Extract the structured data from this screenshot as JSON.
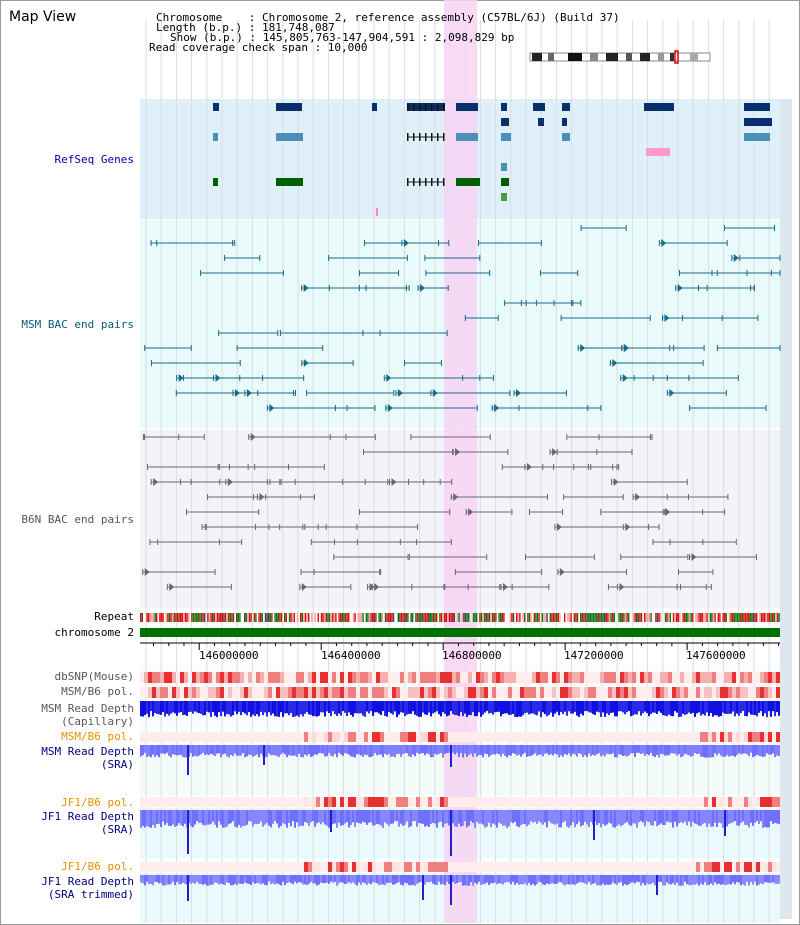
{
  "title": "Map View",
  "header": {
    "chromosome_line": "Chromosome    : Chromosome 2, reference assembly (C57BL/6J) (Build 37)",
    "length_line": "Length (b.p.) : 181,748,087",
    "show_line": "Show (b.p.) : 145,805,763-147,904,591 : 2,098,829 bp",
    "coverage_line": "Read coverage check span : 10,000"
  },
  "view": {
    "start": 145805763,
    "end": 147904591
  },
  "tracks": {
    "refseq": "RefSeq Genes",
    "msm_bac": "MSM BAC end pairs",
    "b6n_bac": "B6N BAC end pairs",
    "repeat": "Repeat",
    "chromosome": "chromosome 2",
    "dbsnp": "dbSNP(Mouse)",
    "msm_b6_pol": "MSM/B6 pol.",
    "msm_depth_cap_1": "MSM Read Depth",
    "msm_depth_cap_2": "(Capillary)",
    "msm_b6_pol_2": "MSM/B6 pol.",
    "msm_depth_sra_1": "MSM Read Depth",
    "msm_depth_sra_2": "(SRA)",
    "jf1_b6_pol": "JF1/B6 pol.",
    "jf1_depth_sra_1": "JF1 Read Depth",
    "jf1_depth_sra_2": "(SRA)",
    "jf1_b6_pol_2": "JF1/B6 pol.",
    "jf1_depth_trim_1": "JF1 Read Depth",
    "jf1_depth_trim_2": "(SRA trimmed)"
  },
  "axis": {
    "ticks": [
      "146000000",
      "146400000",
      "146800000",
      "147200000",
      "147600000"
    ]
  },
  "colors": {
    "refseq_bg": "#dff0fa",
    "msm_bg": "#e8fafa",
    "b6n_bg": "#f3f3fa",
    "highlight": "#f7d3f3",
    "chrom_bar": "#007000",
    "depth_blue": "#7070ff",
    "depth_dark": "#0000e0"
  }
}
